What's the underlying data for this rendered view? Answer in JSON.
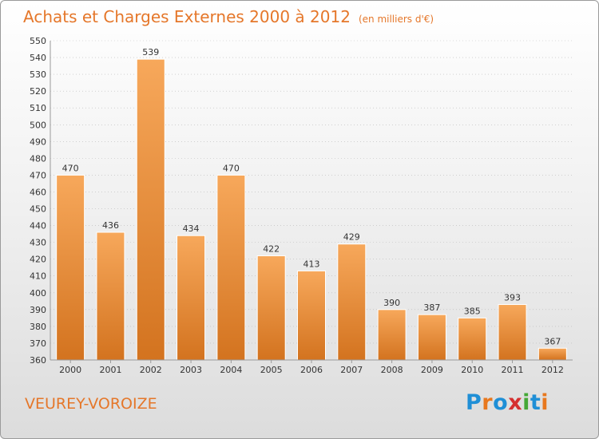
{
  "header": {
    "title": "Achats et Charges Externes 2000 à 2012",
    "subtitle": "(en milliers d'€)"
  },
  "footer": {
    "commune": "VEUREY-VOROIZE"
  },
  "logo": {
    "text": "Proxiti",
    "letters": [
      {
        "char": "P",
        "color": "#1f8fd6"
      },
      {
        "char": "r",
        "color": "#e8781e"
      },
      {
        "char": "o",
        "color": "#1f8fd6"
      },
      {
        "char": "x",
        "color": "#d52f2f"
      },
      {
        "char": "i",
        "color": "#45a836"
      },
      {
        "char": "t",
        "color": "#1f8fd6"
      },
      {
        "char": "i",
        "color": "#e8781e"
      }
    ]
  },
  "colors": {
    "accent": "#e5772a",
    "bar_top": "#f7a85b",
    "bar_bottom": "#d3731f",
    "grid": "#b9b9b9"
  },
  "chart_data": {
    "type": "bar",
    "title": "Achats et Charges Externes 2000 à 2012",
    "subtitle": "(en milliers d'€)",
    "categories": [
      "2000",
      "2001",
      "2002",
      "2003",
      "2004",
      "2005",
      "2006",
      "2007",
      "2008",
      "2009",
      "2010",
      "2011",
      "2012"
    ],
    "values": [
      470,
      436,
      539,
      434,
      470,
      422,
      413,
      429,
      390,
      387,
      385,
      393,
      367
    ],
    "ylim": [
      360,
      550
    ],
    "ytick_step": 10,
    "grid": true,
    "xlabel": "",
    "ylabel": ""
  }
}
